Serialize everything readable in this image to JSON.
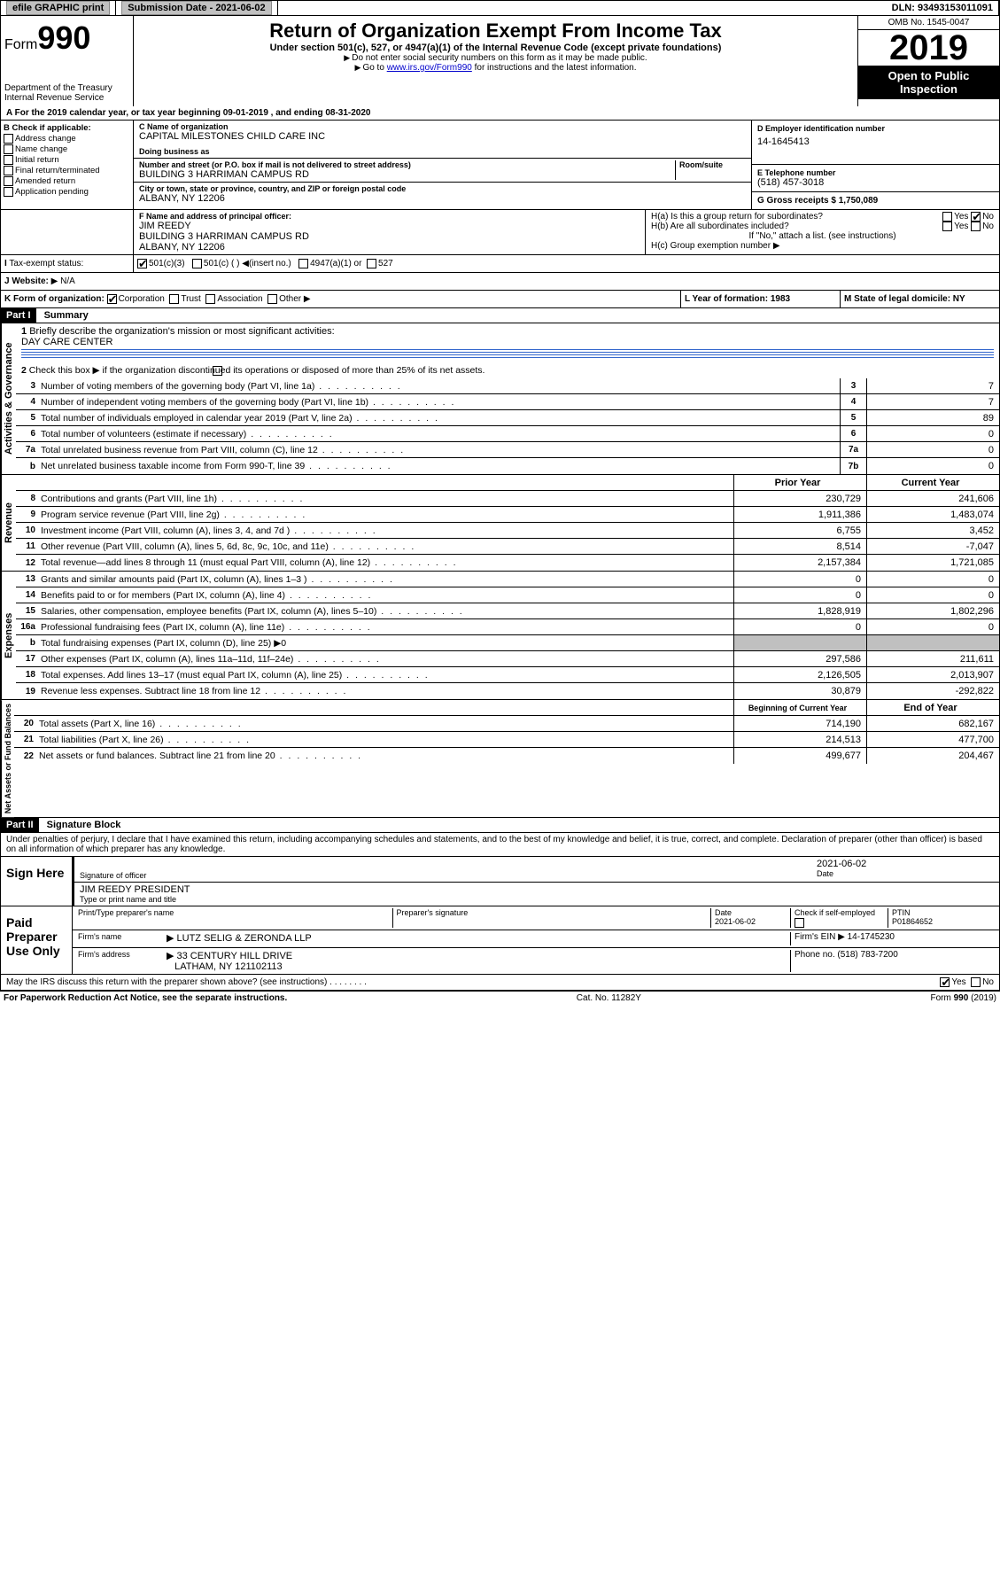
{
  "topbar": {
    "efile": "efile GRAPHIC print",
    "submission_label": "Submission Date - 2021-06-02",
    "dln_label": "DLN: 93493153011091"
  },
  "header": {
    "form_prefix": "Form",
    "form_num": "990",
    "dept": "Department of the Treasury",
    "irs": "Internal Revenue Service",
    "title": "Return of Organization Exempt From Income Tax",
    "sub": "Under section 501(c), 527, or 4947(a)(1) of the Internal Revenue Code (except private foundations)",
    "note1": "Do not enter social security numbers on this form as it may be made public.",
    "note2_a": "Go to ",
    "note2_link": "www.irs.gov/Form990",
    "note2_b": " for instructions and the latest information.",
    "omb": "OMB No. 1545-0047",
    "year": "2019",
    "open": "Open to Public Inspection"
  },
  "a": {
    "period": "For the 2019 calendar year, or tax year beginning 09-01-2019    , and ending 08-31-2020",
    "b_label": "B Check if applicable:",
    "b_opts": [
      "Address change",
      "Name change",
      "Initial return",
      "Final return/terminated",
      "Amended return",
      "Application pending"
    ],
    "c_label": "C Name of organization",
    "c_name": "CAPITAL MILESTONES CHILD CARE INC",
    "dba_label": "Doing business as",
    "addr_label": "Number and street (or P.O. box if mail is not delivered to street address)",
    "room_label": "Room/suite",
    "addr": "BUILDING 3 HARRIMAN CAMPUS RD",
    "city_label": "City or town, state or province, country, and ZIP or foreign postal code",
    "city": "ALBANY, NY  12206",
    "d_label": "D Employer identification number",
    "d_val": "14-1645413",
    "e_label": "E Telephone number",
    "e_val": "(518) 457-3018",
    "g_label": "G Gross receipts $ 1,750,089",
    "f_label": "F  Name and address of principal officer:",
    "f_name": "JIM REEDY",
    "f_addr1": "BUILDING 3 HARRIMAN CAMPUS RD",
    "f_addr2": "ALBANY, NY  12206",
    "ha_label": "H(a)  Is this a group return for subordinates?",
    "hb_label": "H(b)  Are all subordinates included?",
    "hb_note": "If \"No,\" attach a list. (see instructions)",
    "hc_label": "H(c)  Group exemption number",
    "yes": "Yes",
    "no": "No",
    "i_label": "Tax-exempt status:",
    "i_501c3": "501(c)(3)",
    "i_501c": "501(c) (  )",
    "i_insert": "(insert no.)",
    "i_4947": "4947(a)(1) or",
    "i_527": "527",
    "j_label": "Website:",
    "j_val": "N/A",
    "k_label": "K Form of organization:",
    "k_corp": "Corporation",
    "k_trust": "Trust",
    "k_assoc": "Association",
    "k_other": "Other",
    "l_label": "L Year of formation: 1983",
    "m_label": "M State of legal domicile: NY"
  },
  "part1": {
    "hdr": "Part I",
    "title": "Summary",
    "vlabels": [
      "Activities & Governance",
      "Revenue",
      "Expenses",
      "Net Assets or Fund Balances"
    ],
    "l1_label": "Briefly describe the organization's mission or most significant activities:",
    "l1_val": "DAY CARE CENTER",
    "l2": "Check this box ▶     if the organization discontinued its operations or disposed of more than 25% of its net assets.",
    "lines_gov": [
      {
        "n": "3",
        "d": "Number of voting members of the governing body (Part VI, line 1a)",
        "box": "3",
        "v": "7"
      },
      {
        "n": "4",
        "d": "Number of independent voting members of the governing body (Part VI, line 1b)",
        "box": "4",
        "v": "7"
      },
      {
        "n": "5",
        "d": "Total number of individuals employed in calendar year 2019 (Part V, line 2a)",
        "box": "5",
        "v": "89"
      },
      {
        "n": "6",
        "d": "Total number of volunteers (estimate if necessary)",
        "box": "6",
        "v": "0"
      },
      {
        "n": "7a",
        "d": "Total unrelated business revenue from Part VIII, column (C), line 12",
        "box": "7a",
        "v": "0"
      },
      {
        "n": "b",
        "d": "Net unrelated business taxable income from Form 990-T, line 39",
        "box": "7b",
        "v": "0"
      }
    ],
    "col_prior": "Prior Year",
    "col_current": "Current Year",
    "lines_rev": [
      {
        "n": "8",
        "d": "Contributions and grants (Part VIII, line 1h)",
        "p": "230,729",
        "c": "241,606"
      },
      {
        "n": "9",
        "d": "Program service revenue (Part VIII, line 2g)",
        "p": "1,911,386",
        "c": "1,483,074"
      },
      {
        "n": "10",
        "d": "Investment income (Part VIII, column (A), lines 3, 4, and 7d )",
        "p": "6,755",
        "c": "3,452"
      },
      {
        "n": "11",
        "d": "Other revenue (Part VIII, column (A), lines 5, 6d, 8c, 9c, 10c, and 11e)",
        "p": "8,514",
        "c": "-7,047"
      },
      {
        "n": "12",
        "d": "Total revenue—add lines 8 through 11 (must equal Part VIII, column (A), line 12)",
        "p": "2,157,384",
        "c": "1,721,085"
      }
    ],
    "lines_exp": [
      {
        "n": "13",
        "d": "Grants and similar amounts paid (Part IX, column (A), lines 1–3 )",
        "p": "0",
        "c": "0"
      },
      {
        "n": "14",
        "d": "Benefits paid to or for members (Part IX, column (A), line 4)",
        "p": "0",
        "c": "0"
      },
      {
        "n": "15",
        "d": "Salaries, other compensation, employee benefits (Part IX, column (A), lines 5–10)",
        "p": "1,828,919",
        "c": "1,802,296"
      },
      {
        "n": "16a",
        "d": "Professional fundraising fees (Part IX, column (A), line 11e)",
        "p": "0",
        "c": "0"
      },
      {
        "n": "b",
        "d": "Total fundraising expenses (Part IX, column (D), line 25) ▶0",
        "p": "",
        "c": "",
        "gray": true
      },
      {
        "n": "17",
        "d": "Other expenses (Part IX, column (A), lines 11a–11d, 11f–24e)",
        "p": "297,586",
        "c": "211,611"
      },
      {
        "n": "18",
        "d": "Total expenses. Add lines 13–17 (must equal Part IX, column (A), line 25)",
        "p": "2,126,505",
        "c": "2,013,907"
      },
      {
        "n": "19",
        "d": "Revenue less expenses. Subtract line 18 from line 12",
        "p": "30,879",
        "c": "-292,822"
      }
    ],
    "col_begin": "Beginning of Current Year",
    "col_end": "End of Year",
    "lines_net": [
      {
        "n": "20",
        "d": "Total assets (Part X, line 16)",
        "p": "714,190",
        "c": "682,167"
      },
      {
        "n": "21",
        "d": "Total liabilities (Part X, line 26)",
        "p": "214,513",
        "c": "477,700"
      },
      {
        "n": "22",
        "d": "Net assets or fund balances. Subtract line 21 from line 20",
        "p": "499,677",
        "c": "204,467"
      }
    ]
  },
  "part2": {
    "hdr": "Part II",
    "title": "Signature Block",
    "decl": "Under penalties of perjury, I declare that I have examined this return, including accompanying schedules and statements, and to the best of my knowledge and belief, it is true, correct, and complete. Declaration of preparer (other than officer) is based on all information of which preparer has any knowledge.",
    "sign_here": "Sign Here",
    "sig_officer": "Signature of officer",
    "sig_date": "2021-06-02",
    "date_label": "Date",
    "officer_name": "JIM REEDY PRESIDENT",
    "type_name": "Type or print name and title",
    "paid": "Paid Preparer Use Only",
    "prep_name_label": "Print/Type preparer's name",
    "prep_sig_label": "Preparer's signature",
    "prep_date_label": "Date",
    "prep_date": "2021-06-02",
    "check_label": "Check      if self-employed",
    "ptin_label": "PTIN",
    "ptin": "P01864652",
    "firm_name_label": "Firm's name",
    "firm_name": "LUTZ SELIG & ZERONDA LLP",
    "firm_ein_label": "Firm's EIN",
    "firm_ein": "14-1745230",
    "firm_addr_label": "Firm's address",
    "firm_addr": "33 CENTURY HILL DRIVE",
    "firm_city": "LATHAM, NY  121102113",
    "firm_phone_label": "Phone no.",
    "firm_phone": "(518) 783-7200",
    "discuss": "May the IRS discuss this return with the preparer shown above? (see instructions)"
  },
  "footer": {
    "pra": "For Paperwork Reduction Act Notice, see the separate instructions.",
    "cat": "Cat. No. 11282Y",
    "form": "Form 990 (2019)"
  }
}
